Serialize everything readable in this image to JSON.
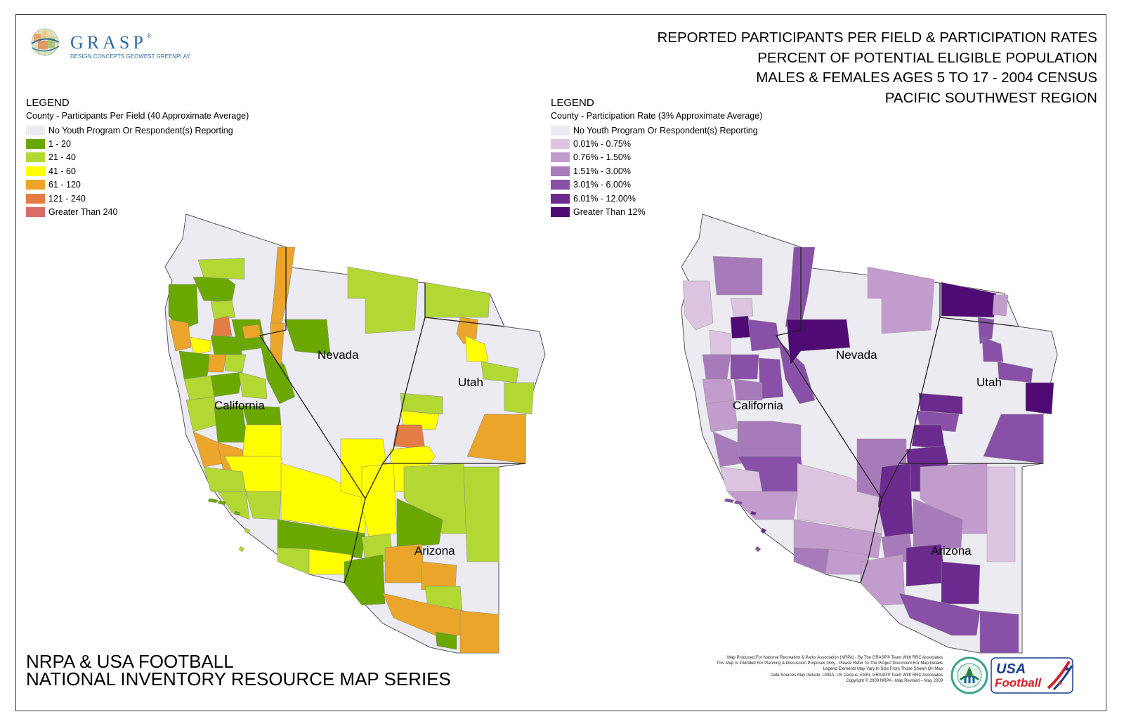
{
  "logo": {
    "name": "GRASP",
    "sub": "DESIGN CONCEPTS  GEOWEST  GREENPLAY"
  },
  "title": {
    "line1": "REPORTED PARTICIPANTS PER FIELD & PARTICIPATION RATES",
    "line2": "PERCENT OF POTENTIAL ELIGIBLE POPULATION",
    "line3": "MALES & FEMALES AGES 5 TO 17 - 2004 CENSUS",
    "line4": "PACIFIC SOUTHWEST REGION"
  },
  "legend_left": {
    "heading": "LEGEND",
    "subtitle": "County - Participants Per Field (40 Approximate Average)",
    "items": [
      {
        "label": "No Youth Program Or Respondent(s) Reporting",
        "color": "#ecebf2"
      },
      {
        "label": "1 - 20",
        "color": "#6aa800"
      },
      {
        "label": "21 - 40",
        "color": "#b3d733"
      },
      {
        "label": "41 - 60",
        "color": "#ffff00"
      },
      {
        "label": "61 - 120",
        "color": "#eba52a"
      },
      {
        "label": "121 - 240",
        "color": "#e47c45"
      },
      {
        "label": "Greater Than 240",
        "color": "#d86c66"
      }
    ]
  },
  "legend_right": {
    "heading": "LEGEND",
    "subtitle": "County - Participation Rate (3% Approximate Average)",
    "items": [
      {
        "label": "No Youth Program Or Respondent(s) Reporting",
        "color": "#ecebf2"
      },
      {
        "label": "0.01% - 0.75%",
        "color": "#dcc4e0"
      },
      {
        "label": "0.76% - 1.50%",
        "color": "#c29ccd"
      },
      {
        "label": "1.51% - 3.00%",
        "color": "#a77bba"
      },
      {
        "label": "3.01% - 6.00%",
        "color": "#8850a6"
      },
      {
        "label": "6.01% - 12.00%",
        "color": "#6b2a8e"
      },
      {
        "label": "Greater Than 12%",
        "color": "#4f0a74"
      }
    ]
  },
  "states": {
    "nevada": "Nevada",
    "utah": "Utah",
    "california": "California",
    "arizona": "Arizona"
  },
  "footer": {
    "line1": "NRPA & USA FOOTBALL",
    "line2": "NATIONAL INVENTORY RESOURCE MAP SERIES"
  },
  "credits": [
    "Map Produced For National Recreation & Parks Association (NRPA) - By The GRASP® Team With RRC Associates",
    "This Map Is Intended For Planning & Discussion Purposes Only - Please Refer To The Project Document For Map Details",
    "Legend Elements May Vary In Size From Those Shown On Map",
    "Data Sources May Include: USDA, US Census, ESRI, GRASP® Team With RRC Associates",
    "Copyright © 2009 NRPA - Map Revised – May 2009"
  ],
  "usa_logo": {
    "line1": "USA",
    "line2": "Football"
  },
  "icons": {
    "grasp_logo": "grasp-logo-icon",
    "nrpa_seal": "nrpa-seal-icon",
    "usa_football": "usa-football-logo-icon"
  }
}
